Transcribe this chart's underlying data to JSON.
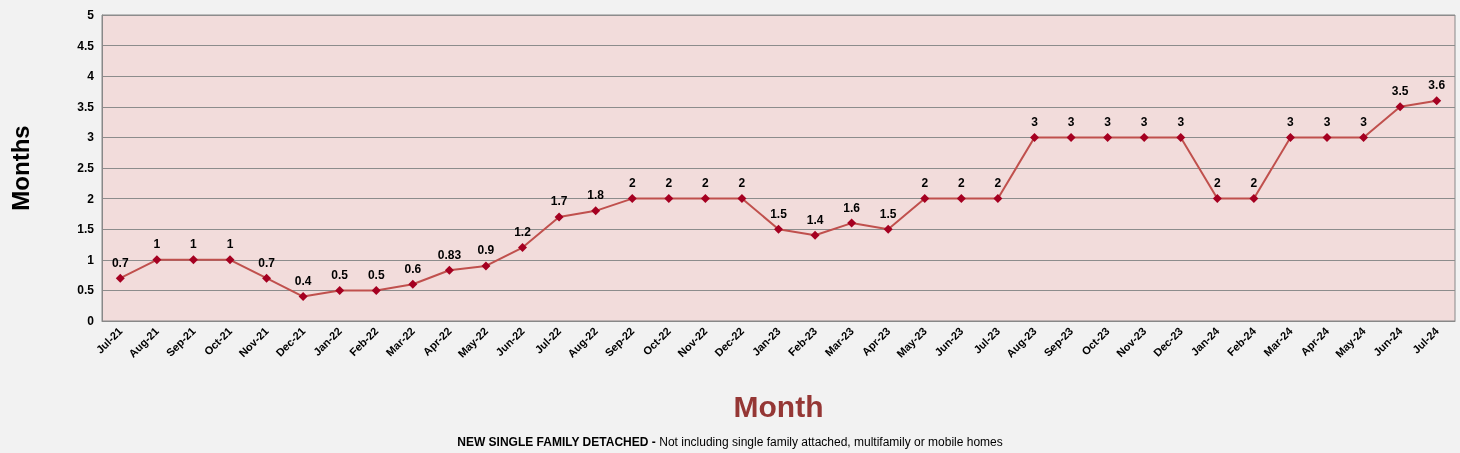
{
  "chart_data": {
    "type": "line",
    "xlabel": "Month",
    "ylabel": "Months",
    "categories": [
      "Jul-21",
      "Aug-21",
      "Sep-21",
      "Oct-21",
      "Nov-21",
      "Dec-21",
      "Jan-22",
      "Feb-22",
      "Mar-22",
      "Apr-22",
      "May-22",
      "Jun-22",
      "Jul-22",
      "Aug-22",
      "Sep-22",
      "Oct-22",
      "Nov-22",
      "Dec-22",
      "Jan-23",
      "Feb-23",
      "Mar-23",
      "Apr-23",
      "May-23",
      "Jun-23",
      "Jul-23",
      "Aug-23",
      "Sep-23",
      "Oct-23",
      "Nov-23",
      "Dec-23",
      "Jan-24",
      "Feb-24",
      "Mar-24",
      "Apr-24",
      "May-24",
      "Jun-24",
      "Jul-24"
    ],
    "series": [
      {
        "color": "#c0504d",
        "values": [
          0.7,
          1,
          1,
          1,
          0.7,
          0.4,
          0.5,
          0.5,
          0.6,
          0.83,
          0.9,
          1.2,
          1.7,
          1.8,
          2,
          2,
          2,
          2,
          1.5,
          1.4,
          1.6,
          1.5,
          2,
          2,
          2,
          3,
          3,
          3,
          3,
          3,
          2,
          2,
          3,
          3,
          3,
          3.5,
          3.6
        ]
      }
    ],
    "ylim": [
      0,
      5
    ],
    "yticks": [
      0,
      0.5,
      1,
      1.5,
      2,
      2.5,
      3,
      3.5,
      4,
      4.5,
      5
    ],
    "grid": "y",
    "marker": "diamond",
    "line_style": "solid",
    "data_labels": true,
    "annotations": [
      "NEW SINGLE FAMILY DETACHED -",
      "Not including single family attached, multifamily or mobile homes"
    ]
  }
}
